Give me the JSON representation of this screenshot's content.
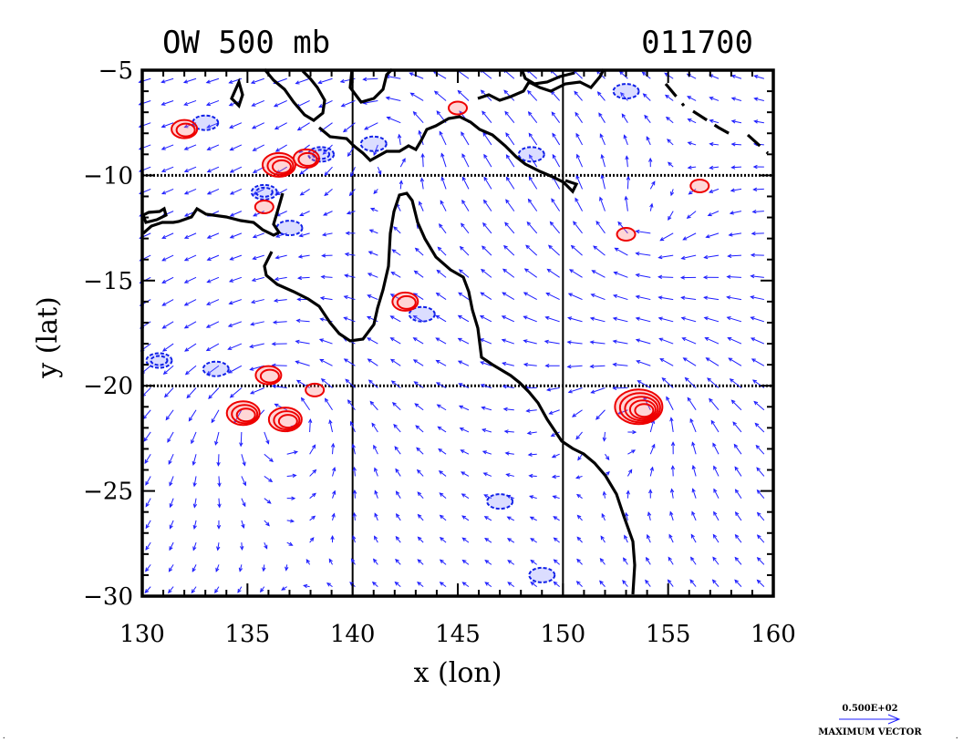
{
  "chart_data": {
    "type": "contour_vector_map",
    "title_left": "OW 500 mb",
    "title_right": "011700",
    "xlabel": "x (lon)",
    "ylabel": "y (lat)",
    "xlim": [
      130,
      160
    ],
    "ylim": [
      -30,
      -5
    ],
    "x_ticks": [
      130,
      135,
      140,
      145,
      150,
      155,
      160
    ],
    "x_tick_labels": [
      "130",
      "135",
      "140",
      "145",
      "150",
      "155",
      "160"
    ],
    "y_ticks": [
      -5,
      -10,
      -15,
      -20,
      -25,
      -30
    ],
    "y_tick_labels": [
      "−5",
      "−10",
      "−15",
      "−20",
      "−25",
      "−30"
    ],
    "grid_lon": [
      140,
      150
    ],
    "grid_lat": [
      -10,
      -20
    ],
    "legend": {
      "value": "0.500E+02",
      "label": "MAXIMUM VECTOR"
    },
    "colors": {
      "vector": "#1d1dff",
      "positive_contour": "#ee0000",
      "negative_contour": "#1020e8",
      "coastline": "#000000",
      "grid": "#000000"
    },
    "circulations": [
      {
        "lon": 136.5,
        "lat": -21.5,
        "sense": "cyclonic"
      },
      {
        "lon": 153.5,
        "lat": -21.0,
        "sense": "cyclonic"
      },
      {
        "lon": 154.0,
        "lat": -12.5,
        "sense": "anticyclonic"
      },
      {
        "lon": 142.0,
        "lat": -8.0,
        "sense": "cyclonic"
      }
    ],
    "positive_contours": [
      {
        "lon": 134.8,
        "lat": -21.3,
        "rings": 3
      },
      {
        "lon": 136.8,
        "lat": -21.6,
        "rings": 3
      },
      {
        "lon": 153.6,
        "lat": -21.0,
        "rings": 5
      },
      {
        "lon": 142.5,
        "lat": -16.0,
        "rings": 2
      },
      {
        "lon": 136.5,
        "lat": -9.5,
        "rings": 3
      },
      {
        "lon": 137.8,
        "lat": -9.2,
        "rings": 2
      },
      {
        "lon": 136.0,
        "lat": -19.5,
        "rings": 2
      },
      {
        "lon": 132.0,
        "lat": -7.8,
        "rings": 2
      },
      {
        "lon": 145.0,
        "lat": -6.8,
        "rings": 1
      },
      {
        "lon": 156.5,
        "lat": -10.5,
        "rings": 1
      },
      {
        "lon": 153.0,
        "lat": -12.8,
        "rings": 1
      },
      {
        "lon": 135.8,
        "lat": -11.5,
        "rings": 1
      },
      {
        "lon": 138.2,
        "lat": -20.2,
        "rings": 1
      }
    ],
    "negative_contours": [
      {
        "lon": 135.8,
        "lat": -10.8,
        "rings": 2
      },
      {
        "lon": 138.5,
        "lat": -9.0,
        "rings": 2
      },
      {
        "lon": 130.8,
        "lat": -18.8,
        "rings": 2
      },
      {
        "lon": 133.5,
        "lat": -19.2,
        "rings": 1
      },
      {
        "lon": 133.0,
        "lat": -7.5,
        "rings": 1
      },
      {
        "lon": 143.3,
        "lat": -16.6,
        "rings": 1
      },
      {
        "lon": 147.0,
        "lat": -25.5,
        "rings": 1
      },
      {
        "lon": 148.5,
        "lat": -9.0,
        "rings": 1
      },
      {
        "lon": 141.0,
        "lat": -8.5,
        "rings": 1
      },
      {
        "lon": 153.0,
        "lat": -6.0,
        "rings": 1
      },
      {
        "lon": 149.0,
        "lat": -29.0,
        "rings": 1
      },
      {
        "lon": 137.0,
        "lat": -12.5,
        "rings": 1
      }
    ]
  }
}
